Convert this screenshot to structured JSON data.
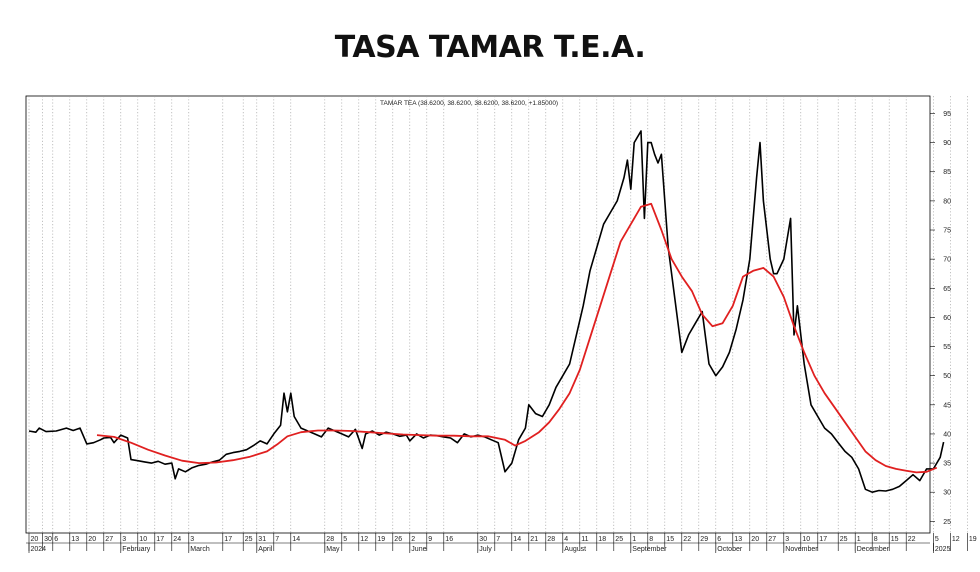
{
  "page": {
    "title": "TASA TAMAR T.E.A."
  },
  "chart_data": {
    "type": "line",
    "legend": "TAMAR TEA (38.6200, 38.6200, 38.6200, 38.6200, +1.85000)",
    "ylim": [
      23,
      98
    ],
    "y_ticks": [
      25,
      30,
      35,
      40,
      45,
      50,
      55,
      60,
      65,
      70,
      75,
      80,
      85,
      90,
      95
    ],
    "y_axis_position": "right",
    "grid": "vertical-dotted",
    "x_ticks": [
      "20",
      "30",
      "6",
      "13",
      "20",
      "27",
      "3",
      "10",
      "17",
      "24",
      "3",
      "17",
      "25",
      "31",
      "7",
      "14",
      "28",
      "5",
      "12",
      "19",
      "26",
      "2",
      "9",
      "16",
      "30",
      "7",
      "14",
      "21",
      "28",
      "4",
      "11",
      "18",
      "25",
      "1",
      "8",
      "15",
      "22",
      "29",
      "6",
      "13",
      "20",
      "27",
      "3",
      "10",
      "17",
      "25",
      "1",
      "8",
      "15",
      "22",
      "5",
      "12",
      "19"
    ],
    "x_tick_index": [
      0,
      4,
      7,
      12,
      17,
      22,
      27,
      32,
      37,
      42,
      47,
      57,
      63,
      67,
      72,
      77,
      87,
      92,
      97,
      102,
      107,
      112,
      117,
      122,
      132,
      137,
      142,
      147,
      152,
      157,
      162,
      167,
      172,
      177,
      182,
      187,
      192,
      197,
      202,
      207,
      212,
      217,
      222,
      227,
      232,
      238,
      243,
      248,
      253,
      258,
      266,
      271,
      276
    ],
    "month_labels": [
      {
        "label": "2024",
        "index": 0
      },
      {
        "label": "February",
        "index": 27
      },
      {
        "label": "March",
        "index": 47
      },
      {
        "label": "April",
        "index": 67
      },
      {
        "label": "May",
        "index": 87
      },
      {
        "label": "June",
        "index": 112
      },
      {
        "label": "July",
        "index": 132
      },
      {
        "label": "August",
        "index": 157
      },
      {
        "label": "September",
        "index": 177
      },
      {
        "label": "October",
        "index": 202
      },
      {
        "label": "November",
        "index": 222
      },
      {
        "label": "December",
        "index": 243
      },
      {
        "label": "2025",
        "index": 266
      }
    ],
    "series": [
      {
        "color": "#000000",
        "points": [
          [
            0,
            40.5
          ],
          [
            2,
            40.3
          ],
          [
            3,
            41
          ],
          [
            5,
            40.4
          ],
          [
            8,
            40.5
          ],
          [
            11,
            41
          ],
          [
            13,
            40.6
          ],
          [
            15,
            41
          ],
          [
            17,
            38.3
          ],
          [
            19,
            38.5
          ],
          [
            21,
            39
          ],
          [
            22,
            39.3
          ],
          [
            24,
            39.4
          ],
          [
            25,
            38.5
          ],
          [
            27,
            39.8
          ],
          [
            29,
            39.3
          ],
          [
            30,
            35.6
          ],
          [
            32,
            35.4
          ],
          [
            34,
            35.2
          ],
          [
            36,
            35
          ],
          [
            38,
            35.3
          ],
          [
            40,
            34.8
          ],
          [
            42,
            35
          ],
          [
            43,
            32.3
          ],
          [
            44,
            34
          ],
          [
            46,
            33.5
          ],
          [
            48,
            34.2
          ],
          [
            50,
            34.6
          ],
          [
            52,
            34.8
          ],
          [
            54,
            35.2
          ],
          [
            56,
            35.5
          ],
          [
            58,
            36.5
          ],
          [
            60,
            36.8
          ],
          [
            62,
            37
          ],
          [
            64,
            37.3
          ],
          [
            66,
            38
          ],
          [
            68,
            38.8
          ],
          [
            70,
            38.3
          ],
          [
            72,
            40
          ],
          [
            74,
            41.5
          ],
          [
            75,
            47
          ],
          [
            76,
            43.8
          ],
          [
            77,
            47
          ],
          [
            78,
            43
          ],
          [
            80,
            41
          ],
          [
            82,
            40.5
          ],
          [
            84,
            40
          ],
          [
            86,
            39.5
          ],
          [
            88,
            41
          ],
          [
            90,
            40.5
          ],
          [
            92,
            40
          ],
          [
            94,
            39.5
          ],
          [
            96,
            40.8
          ],
          [
            98,
            37.5
          ],
          [
            99,
            40
          ],
          [
            101,
            40.5
          ],
          [
            103,
            39.8
          ],
          [
            105,
            40.3
          ],
          [
            107,
            40
          ],
          [
            109,
            39.6
          ],
          [
            111,
            39.8
          ],
          [
            112,
            38.8
          ],
          [
            114,
            40
          ],
          [
            116,
            39.3
          ],
          [
            118,
            39.8
          ],
          [
            120,
            39.7
          ],
          [
            122,
            39.5
          ],
          [
            124,
            39.3
          ],
          [
            126,
            38.5
          ],
          [
            128,
            40
          ],
          [
            130,
            39.5
          ],
          [
            132,
            39.8
          ],
          [
            134,
            39.5
          ],
          [
            136,
            39
          ],
          [
            138,
            38.5
          ],
          [
            140,
            33.5
          ],
          [
            142,
            35
          ],
          [
            144,
            39
          ],
          [
            146,
            41
          ],
          [
            147,
            45
          ],
          [
            149,
            43.5
          ],
          [
            151,
            43
          ],
          [
            153,
            45
          ],
          [
            155,
            48
          ],
          [
            157,
            50
          ],
          [
            159,
            52
          ],
          [
            161,
            57
          ],
          [
            163,
            62
          ],
          [
            165,
            68
          ],
          [
            167,
            72
          ],
          [
            169,
            76
          ],
          [
            171,
            78
          ],
          [
            173,
            80
          ],
          [
            175,
            84
          ],
          [
            176,
            87
          ],
          [
            177,
            82
          ],
          [
            178,
            90
          ],
          [
            180,
            92
          ],
          [
            181,
            77
          ],
          [
            182,
            90
          ],
          [
            183,
            90
          ],
          [
            184,
            88
          ],
          [
            185,
            86.5
          ],
          [
            186,
            88
          ],
          [
            188,
            72
          ],
          [
            190,
            63
          ],
          [
            192,
            54
          ],
          [
            194,
            57
          ],
          [
            196,
            59
          ],
          [
            198,
            61
          ],
          [
            200,
            52
          ],
          [
            202,
            50
          ],
          [
            204,
            51.5
          ],
          [
            206,
            54
          ],
          [
            208,
            58
          ],
          [
            210,
            63
          ],
          [
            212,
            70
          ],
          [
            214,
            84
          ],
          [
            215,
            90
          ],
          [
            216,
            80
          ],
          [
            218,
            70
          ],
          [
            219,
            67.5
          ],
          [
            220,
            67.5
          ],
          [
            222,
            70
          ],
          [
            224,
            77
          ],
          [
            225,
            57
          ],
          [
            226,
            62
          ],
          [
            228,
            52
          ],
          [
            230,
            45
          ],
          [
            232,
            43
          ],
          [
            234,
            41
          ],
          [
            236,
            40
          ],
          [
            238,
            38.5
          ],
          [
            240,
            37
          ],
          [
            242,
            36
          ],
          [
            244,
            34
          ],
          [
            246,
            30.5
          ],
          [
            248,
            30
          ],
          [
            250,
            30.3
          ],
          [
            252,
            30.2
          ],
          [
            254,
            30.5
          ],
          [
            256,
            31
          ],
          [
            258,
            32
          ],
          [
            260,
            33
          ],
          [
            262,
            32
          ],
          [
            264,
            34
          ],
          [
            266,
            34
          ],
          [
            268,
            36
          ],
          [
            269,
            38.6
          ]
        ]
      },
      {
        "color": "#e02020",
        "points": [
          [
            20,
            39.8
          ],
          [
            25,
            39.5
          ],
          [
            30,
            38.5
          ],
          [
            35,
            37.3
          ],
          [
            40,
            36.3
          ],
          [
            45,
            35.4
          ],
          [
            50,
            35
          ],
          [
            55,
            35.1
          ],
          [
            60,
            35.5
          ],
          [
            65,
            36.1
          ],
          [
            70,
            37
          ],
          [
            73,
            38.2
          ],
          [
            76,
            39.6
          ],
          [
            80,
            40.3
          ],
          [
            85,
            40.6
          ],
          [
            90,
            40.6
          ],
          [
            95,
            40.5
          ],
          [
            100,
            40.3
          ],
          [
            105,
            40.1
          ],
          [
            110,
            39.9
          ],
          [
            115,
            39.8
          ],
          [
            120,
            39.7
          ],
          [
            125,
            39.7
          ],
          [
            130,
            39.6
          ],
          [
            135,
            39.6
          ],
          [
            140,
            39
          ],
          [
            143,
            38
          ],
          [
            146,
            38.8
          ],
          [
            150,
            40.3
          ],
          [
            153,
            42
          ],
          [
            156,
            44.3
          ],
          [
            159,
            47
          ],
          [
            162,
            51
          ],
          [
            165,
            56.5
          ],
          [
            168,
            62
          ],
          [
            171,
            67.5
          ],
          [
            174,
            73
          ],
          [
            177,
            76
          ],
          [
            180,
            79
          ],
          [
            183,
            79.5
          ],
          [
            186,
            75
          ],
          [
            189,
            70
          ],
          [
            192,
            67
          ],
          [
            195,
            64.5
          ],
          [
            198,
            60.5
          ],
          [
            201,
            58.5
          ],
          [
            204,
            59
          ],
          [
            207,
            62
          ],
          [
            210,
            67
          ],
          [
            213,
            68
          ],
          [
            216,
            68.5
          ],
          [
            219,
            67
          ],
          [
            222,
            63.5
          ],
          [
            225,
            58.5
          ],
          [
            228,
            54
          ],
          [
            231,
            50
          ],
          [
            234,
            47
          ],
          [
            237,
            44.5
          ],
          [
            240,
            42
          ],
          [
            243,
            39.5
          ],
          [
            246,
            37
          ],
          [
            249,
            35.5
          ],
          [
            252,
            34.5
          ],
          [
            255,
            34
          ],
          [
            258,
            33.7
          ],
          [
            261,
            33.4
          ],
          [
            264,
            33.5
          ],
          [
            267,
            34.2
          ]
        ]
      }
    ]
  }
}
